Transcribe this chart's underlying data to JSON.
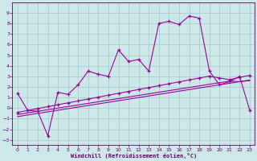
{
  "xlabel": "Windchill (Refroidissement éolien,°C)",
  "line1_x": [
    0,
    1,
    2,
    3,
    4,
    5,
    6,
    7,
    8,
    9,
    10,
    11,
    12,
    13,
    14,
    15,
    16,
    17,
    18,
    19,
    20,
    21,
    22,
    23
  ],
  "line1_y": [
    1.4,
    -0.2,
    -0.3,
    -2.6,
    1.5,
    1.3,
    2.2,
    3.5,
    3.2,
    3.0,
    5.5,
    4.4,
    4.6,
    3.5,
    8.0,
    8.2,
    7.9,
    8.7,
    8.5,
    3.5,
    2.2,
    2.5,
    3.0,
    -0.2
  ],
  "line2_x": [
    0,
    1,
    2,
    3,
    4,
    5,
    6,
    7,
    8,
    9,
    10,
    11,
    12,
    13,
    14,
    15,
    16,
    17,
    18,
    19,
    20,
    21,
    22,
    23
  ],
  "line2_y": [
    -0.6,
    -0.45,
    -0.3,
    -0.15,
    0.0,
    0.15,
    0.3,
    0.45,
    0.6,
    0.75,
    0.9,
    1.05,
    1.2,
    1.35,
    1.5,
    1.65,
    1.8,
    1.95,
    2.1,
    2.25,
    2.4,
    2.55,
    2.5,
    2.6
  ],
  "line3_x": [
    0,
    1,
    2,
    3,
    4,
    5,
    6,
    7,
    8,
    9,
    10,
    11,
    12,
    13,
    14,
    15,
    16,
    17,
    18,
    19,
    20,
    21,
    22,
    23
  ],
  "line3_y": [
    -0.8,
    -0.65,
    -0.5,
    -0.35,
    -0.2,
    -0.05,
    0.1,
    0.25,
    0.4,
    0.55,
    0.7,
    0.85,
    1.0,
    1.15,
    1.3,
    1.45,
    1.6,
    1.75,
    1.9,
    2.05,
    2.2,
    2.35,
    2.5,
    2.65
  ],
  "line4_x": [
    0,
    1,
    2,
    3,
    4,
    5,
    6,
    7,
    8,
    9,
    10,
    11,
    12,
    13,
    14,
    15,
    16,
    17,
    18,
    19,
    20,
    21,
    22,
    23
  ],
  "line4_y": [
    -0.4,
    -0.22,
    -0.04,
    0.14,
    0.32,
    0.5,
    0.68,
    0.86,
    1.04,
    1.22,
    1.4,
    1.58,
    1.76,
    1.94,
    2.12,
    2.3,
    2.48,
    2.66,
    2.84,
    3.02,
    2.85,
    2.68,
    2.9,
    3.1
  ],
  "color": "#990099",
  "bg_color": "#cce8e8",
  "grid_color": "#aacccc",
  "ylim": [
    -3.5,
    10.0
  ],
  "xlim": [
    -0.5,
    23.5
  ],
  "yticks": [
    -3,
    -2,
    -1,
    0,
    1,
    2,
    3,
    4,
    5,
    6,
    7,
    8,
    9
  ],
  "xticks": [
    0,
    1,
    2,
    3,
    4,
    5,
    6,
    7,
    8,
    9,
    10,
    11,
    12,
    13,
    14,
    15,
    16,
    17,
    18,
    19,
    20,
    21,
    22,
    23
  ]
}
